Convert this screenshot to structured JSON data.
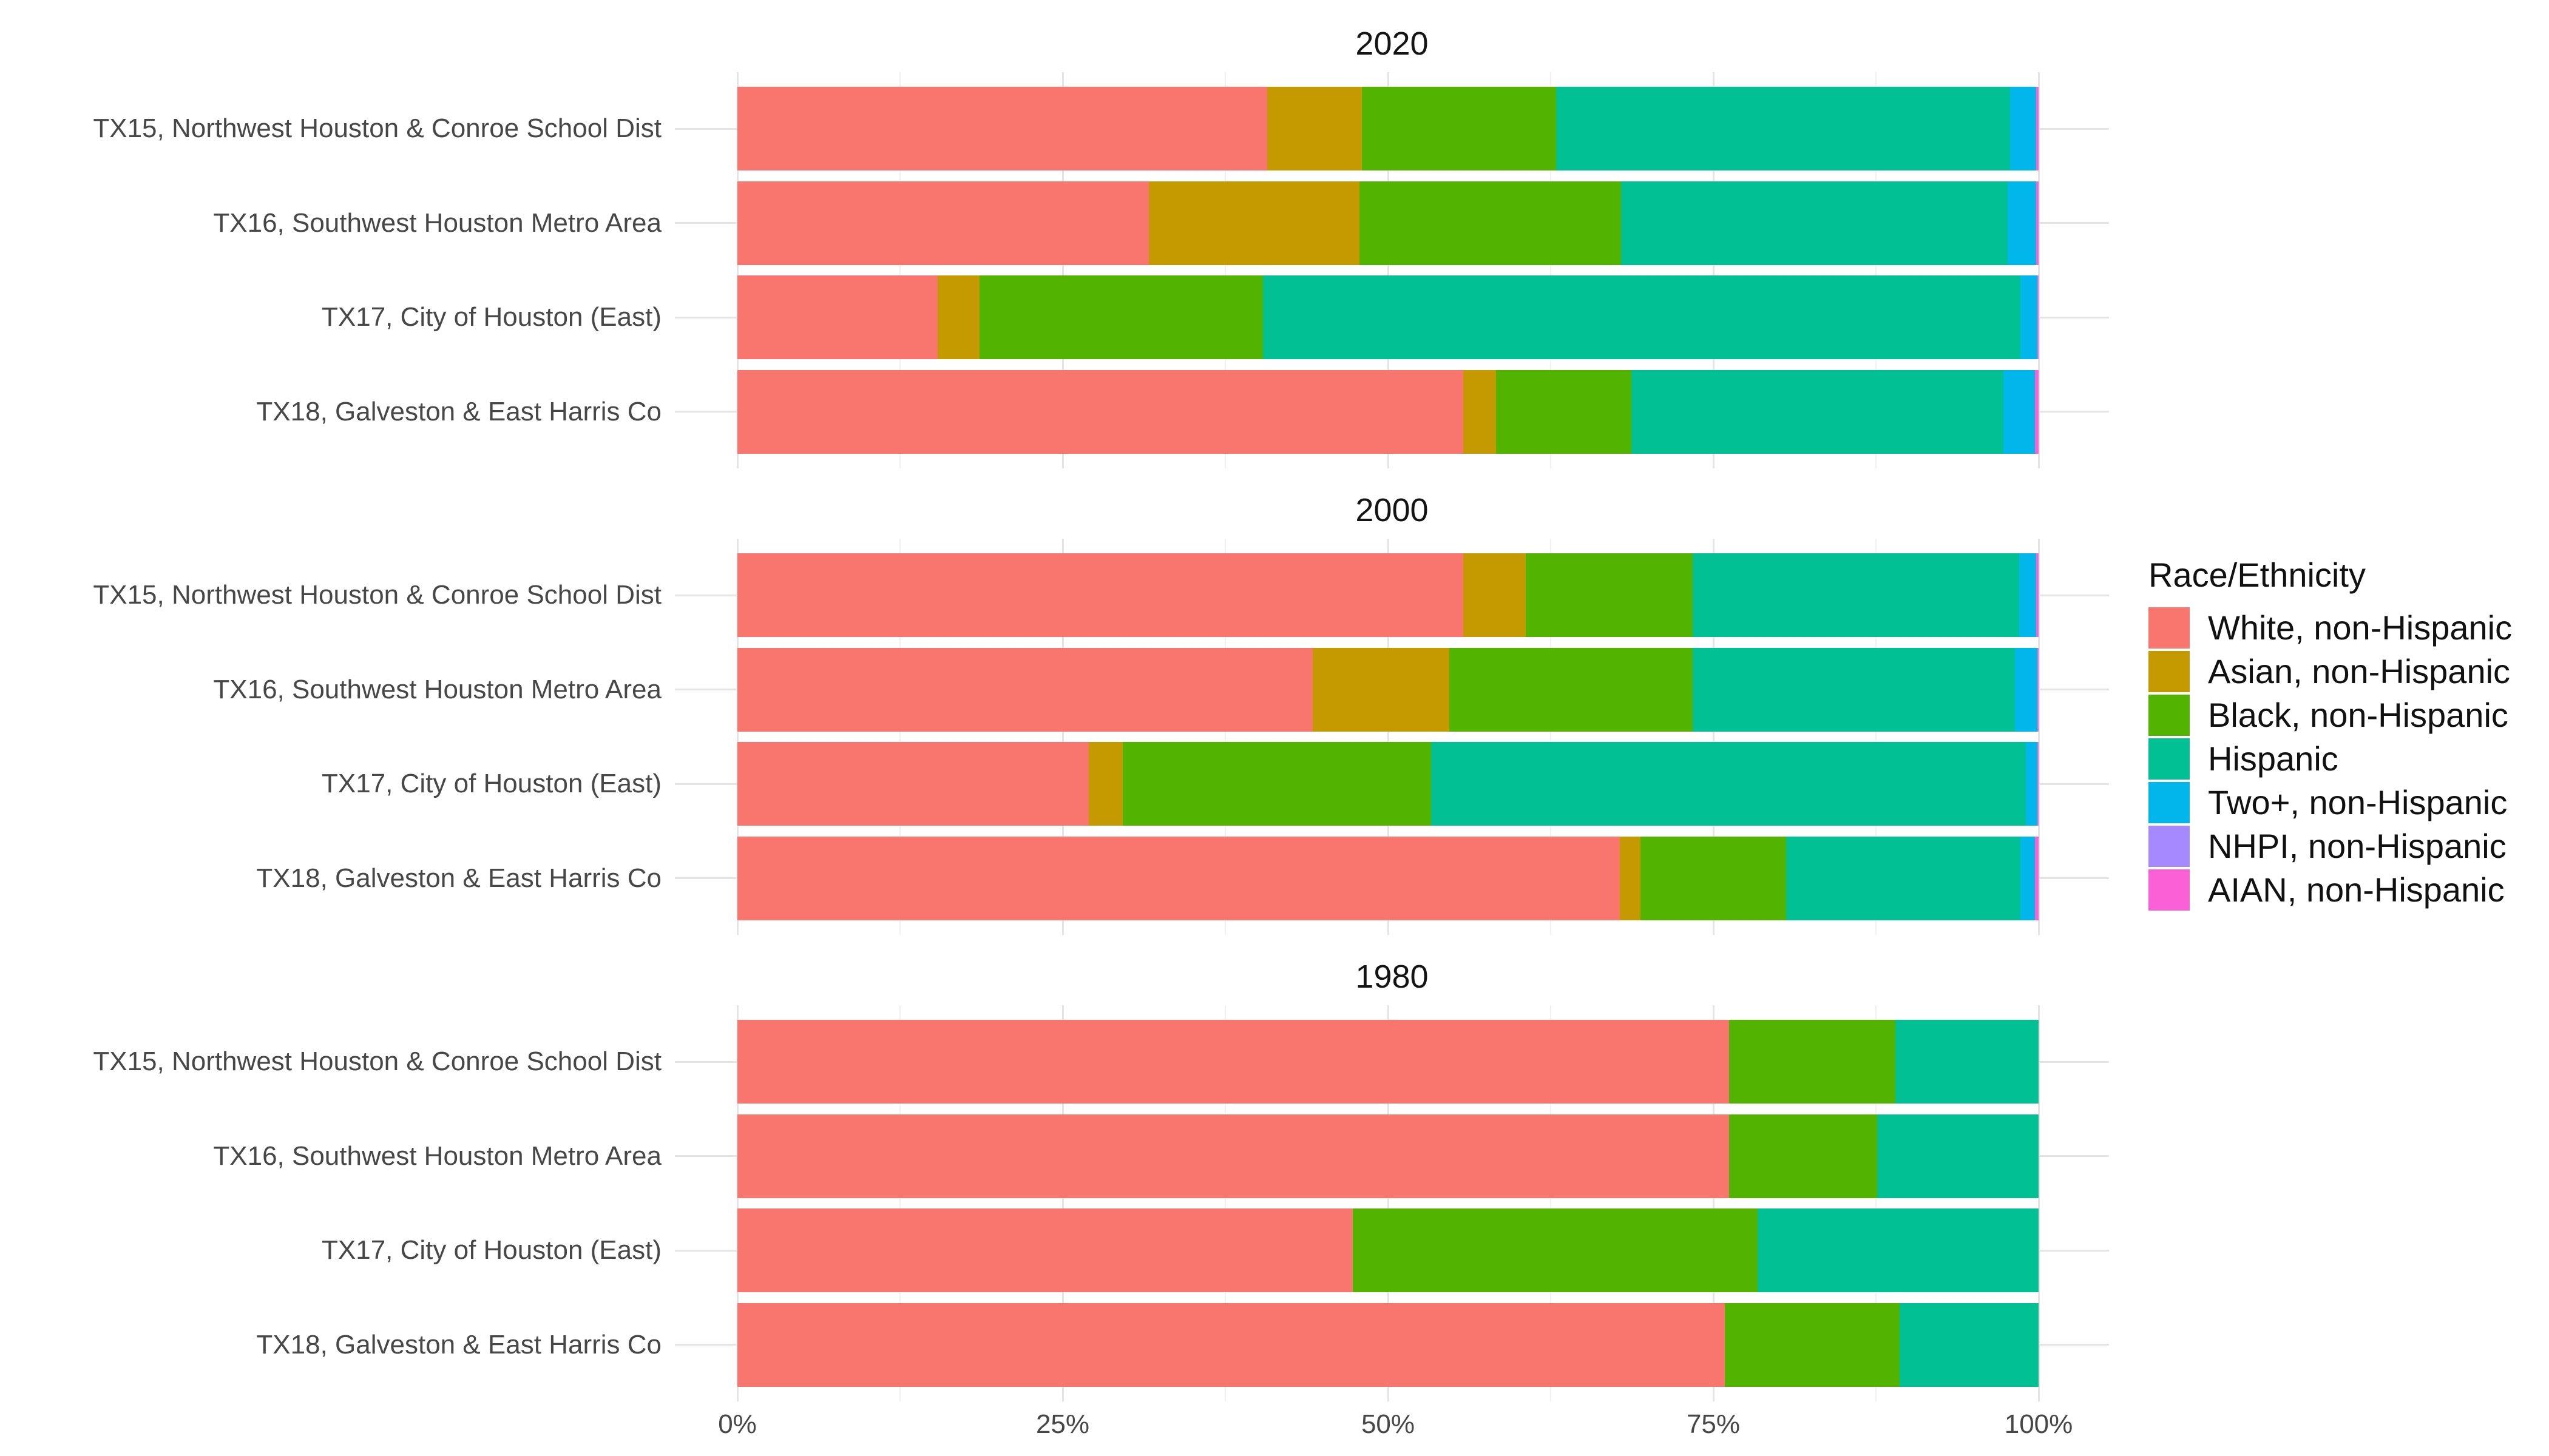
{
  "chart_data": {
    "type": "bar",
    "orientation": "horizontal",
    "stacked": true,
    "unit": "percent",
    "x_axis": {
      "range": [
        0,
        100
      ],
      "tick_labels": [
        "0%",
        "25%",
        "50%",
        "75%",
        "100%"
      ],
      "minor_gridlines": true
    },
    "grid": true,
    "categories": [
      "TX15, Northwest Houston & Conroe School Dist",
      "TX16, Southwest Houston Metro Area",
      "TX17, City of Houston (East)",
      "TX18, Galveston & East Harris Co"
    ],
    "series_names": [
      "White, non-Hispanic",
      "Asian, non-Hispanic",
      "Black, non-Hispanic",
      "Hispanic",
      "Two+, non-Hispanic",
      "NHPI, non-Hispanic",
      "AIAN, non-Hispanic"
    ],
    "series_colors": [
      "#F8766D",
      "#C49A00",
      "#53B400",
      "#00C094",
      "#00B6EB",
      "#A58AFF",
      "#FB61D7"
    ],
    "panels": [
      {
        "title": "2020",
        "bars": [
          [
            40.7,
            7.3,
            14.9,
            34.9,
            2.0,
            0.0,
            0.2
          ],
          [
            31.6,
            16.2,
            20.1,
            29.7,
            2.2,
            0.0,
            0.2
          ],
          [
            15.4,
            3.2,
            21.8,
            58.2,
            1.3,
            0.0,
            0.1
          ],
          [
            55.8,
            2.5,
            10.4,
            28.6,
            2.4,
            0.0,
            0.3
          ]
        ]
      },
      {
        "title": "2000",
        "bars": [
          [
            55.8,
            4.8,
            12.8,
            25.1,
            1.3,
            0.0,
            0.2
          ],
          [
            44.2,
            10.5,
            18.7,
            24.8,
            1.7,
            0.0,
            0.1
          ],
          [
            27.0,
            2.6,
            23.7,
            45.7,
            0.9,
            0.0,
            0.1
          ],
          [
            67.8,
            1.6,
            11.2,
            18.0,
            1.1,
            0.0,
            0.3
          ]
        ]
      },
      {
        "title": "1980",
        "bars": [
          [
            76.2,
            0.0,
            12.8,
            11.0,
            0.0,
            0.0,
            0.0
          ],
          [
            76.2,
            0.0,
            11.4,
            12.4,
            0.0,
            0.0,
            0.0
          ],
          [
            47.3,
            0.0,
            31.1,
            21.6,
            0.0,
            0.0,
            0.0
          ],
          [
            75.9,
            0.0,
            13.4,
            10.7,
            0.0,
            0.0,
            0.0
          ]
        ]
      }
    ],
    "legend": {
      "title": "Race/Ethnicity",
      "position": "right"
    }
  }
}
